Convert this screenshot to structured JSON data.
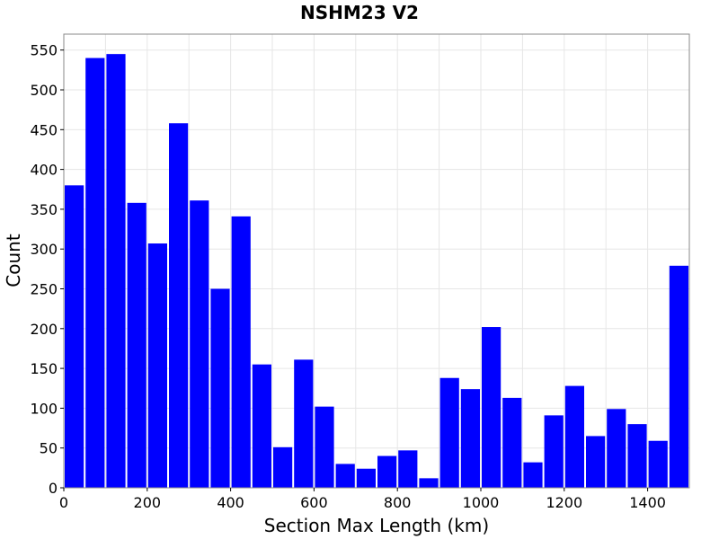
{
  "chart_data": {
    "type": "bar",
    "title": "NSHM23 V2",
    "xlabel": "Section Max Length (km)",
    "ylabel": "Count",
    "xlim": [
      0,
      1500
    ],
    "ylim": [
      0,
      570
    ],
    "grid": true,
    "bin_width": 50,
    "bar_color": "#0000ff",
    "x_ticks": [
      0,
      200,
      400,
      600,
      800,
      1000,
      1200,
      1400
    ],
    "y_ticks": [
      0,
      50,
      100,
      150,
      200,
      250,
      300,
      350,
      400,
      450,
      500,
      550
    ],
    "bin_starts": [
      0,
      50,
      100,
      150,
      200,
      250,
      300,
      350,
      400,
      450,
      500,
      550,
      600,
      650,
      700,
      750,
      800,
      850,
      900,
      950,
      1000,
      1050,
      1100,
      1150,
      1200,
      1250,
      1300,
      1350,
      1400,
      1450
    ],
    "values": [
      380,
      540,
      545,
      358,
      307,
      458,
      361,
      250,
      341,
      155,
      51,
      161,
      102,
      30,
      24,
      40,
      47,
      12,
      138,
      124,
      202,
      113,
      32,
      91,
      128,
      65,
      99,
      80,
      59,
      279
    ]
  }
}
